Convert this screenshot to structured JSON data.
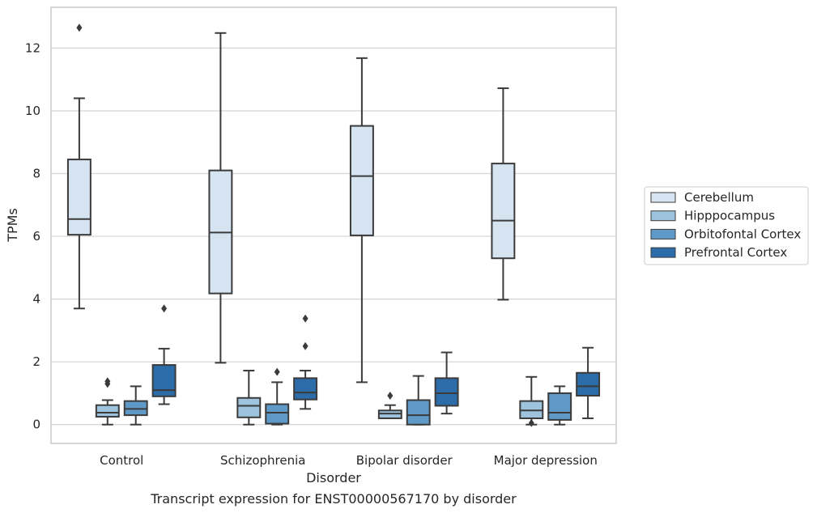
{
  "chart_data": {
    "type": "box",
    "caption": "Transcript expression for ENST00000567170 by disorder",
    "xlabel": "Disorder",
    "ylabel": "TPMs",
    "ylim": [
      -0.6,
      13.3
    ],
    "yticks": [
      0,
      2,
      4,
      6,
      8,
      10,
      12
    ],
    "grid": true,
    "legend_position": "right",
    "categories": [
      "Control",
      "Schizophrenia",
      "Bipolar disorder",
      "Major depression"
    ],
    "series": [
      {
        "name": "Cerebellum",
        "color": "#d6e4f1",
        "boxes": [
          {
            "whislo": 3.7,
            "q1": 6.05,
            "med": 6.55,
            "q3": 8.45,
            "whishi": 10.4,
            "fliers": [
              12.65
            ]
          },
          {
            "whislo": 1.97,
            "q1": 4.18,
            "med": 6.12,
            "q3": 8.1,
            "whishi": 12.48,
            "fliers": []
          },
          {
            "whislo": 1.35,
            "q1": 6.03,
            "med": 7.92,
            "q3": 9.52,
            "whishi": 11.68,
            "fliers": []
          },
          {
            "whislo": 3.98,
            "q1": 5.3,
            "med": 6.5,
            "q3": 8.32,
            "whishi": 10.72,
            "fliers": []
          }
        ]
      },
      {
        "name": "Hipppocampus",
        "color": "#9dc3dd",
        "boxes": [
          {
            "whislo": 0.0,
            "q1": 0.25,
            "med": 0.38,
            "q3": 0.62,
            "whishi": 0.78,
            "fliers": [
              1.3,
              1.38
            ]
          },
          {
            "whislo": 0.0,
            "q1": 0.23,
            "med": 0.6,
            "q3": 0.85,
            "whishi": 1.72,
            "fliers": []
          },
          {
            "whislo": 0.2,
            "q1": 0.2,
            "med": 0.35,
            "q3": 0.45,
            "whishi": 0.62,
            "fliers": [
              0.92
            ]
          },
          {
            "whislo": 0.0,
            "q1": 0.2,
            "med": 0.45,
            "q3": 0.75,
            "whishi": 1.52,
            "fliers": [
              0.05
            ]
          }
        ]
      },
      {
        "name": "Orbitofontal Cortex",
        "color": "#5e99c8",
        "boxes": [
          {
            "whislo": 0.0,
            "q1": 0.3,
            "med": 0.5,
            "q3": 0.75,
            "whishi": 1.22,
            "fliers": []
          },
          {
            "whislo": 0.0,
            "q1": 0.03,
            "med": 0.38,
            "q3": 0.65,
            "whishi": 1.35,
            "fliers": [
              1.68
            ]
          },
          {
            "whislo": 0.0,
            "q1": 0.0,
            "med": 0.3,
            "q3": 0.78,
            "whishi": 1.55,
            "fliers": []
          },
          {
            "whislo": 0.0,
            "q1": 0.15,
            "med": 0.38,
            "q3": 1.0,
            "whishi": 1.22,
            "fliers": []
          }
        ]
      },
      {
        "name": "Prefrontal Cortex",
        "color": "#2c6ca8",
        "boxes": [
          {
            "whislo": 0.65,
            "q1": 0.9,
            "med": 1.1,
            "q3": 1.9,
            "whishi": 2.42,
            "fliers": [
              3.7
            ]
          },
          {
            "whislo": 0.5,
            "q1": 0.8,
            "med": 1.02,
            "q3": 1.48,
            "whishi": 1.72,
            "fliers": [
              2.5,
              3.38
            ]
          },
          {
            "whislo": 0.35,
            "q1": 0.6,
            "med": 1.0,
            "q3": 1.48,
            "whishi": 2.3,
            "fliers": []
          },
          {
            "whislo": 0.2,
            "q1": 0.92,
            "med": 1.22,
            "q3": 1.65,
            "whishi": 2.45,
            "fliers": []
          }
        ]
      }
    ]
  }
}
